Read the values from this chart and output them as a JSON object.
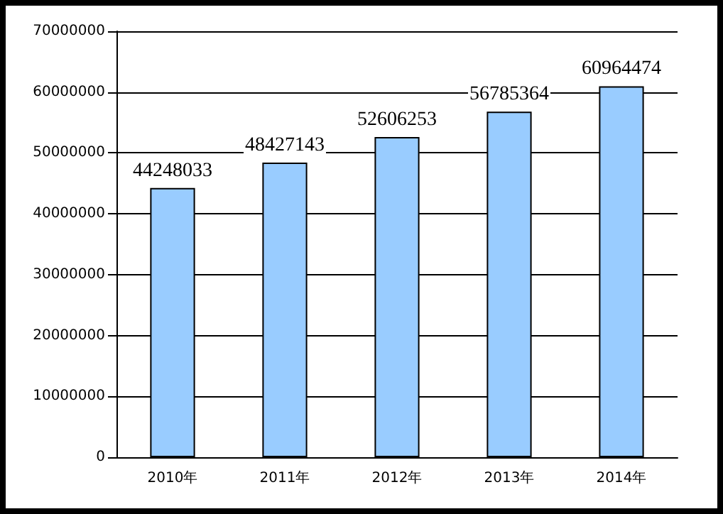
{
  "chart_data": {
    "type": "bar",
    "categories": [
      "2010年",
      "2011年",
      "2012年",
      "2013年",
      "2014年"
    ],
    "values": [
      44248033,
      48427143,
      52606253,
      56785364,
      60964474
    ],
    "color": "#99ccff",
    "ylim": [
      0,
      70000000
    ],
    "yticks": [
      0,
      10000000,
      20000000,
      30000000,
      40000000,
      50000000,
      60000000,
      70000000
    ],
    "grid": "y",
    "data_labels": true
  }
}
